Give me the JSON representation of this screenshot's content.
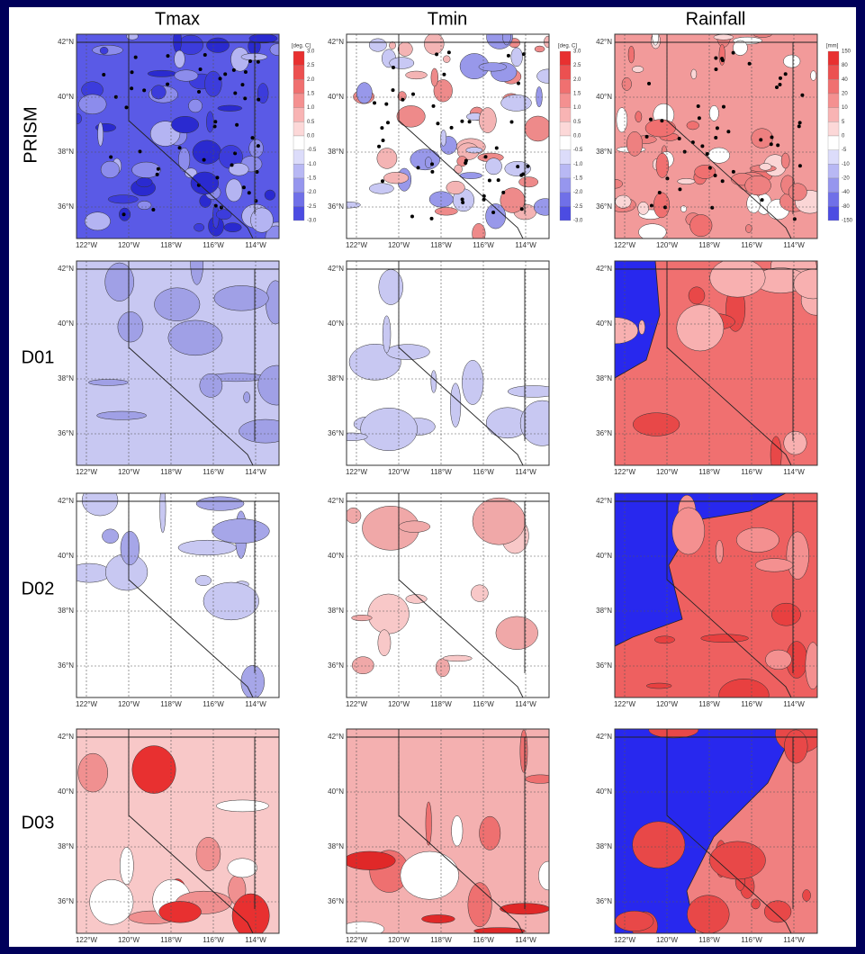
{
  "columns": [
    "Tmax",
    "Tmin",
    "Rainfall"
  ],
  "rows": [
    "PRISM",
    "D01",
    "D02",
    "D03"
  ],
  "lat_labels": [
    "42°N",
    "40°N",
    "38°N",
    "36°N"
  ],
  "lon_labels": [
    "122°W",
    "120°W",
    "118°W",
    "116°W",
    "114°W"
  ],
  "colorbars": [
    {
      "units": "[deg. C]",
      "labels": [
        "3.0",
        "2.5",
        "2.0",
        "1.5",
        "1.0",
        "0.5",
        "0.0",
        "-0.5",
        "-1.0",
        "-1.5",
        "-2.0",
        "-2.5",
        "-3.0"
      ]
    },
    {
      "units": "[deg. C]",
      "labels": [
        "3.0",
        "2.5",
        "2.0",
        "1.5",
        "1.0",
        "0.5",
        "0.0",
        "-0.5",
        "-1.0",
        "-1.5",
        "-2.0",
        "-2.5",
        "-3.0"
      ]
    },
    {
      "units": "[mm]",
      "labels": [
        "150",
        "80",
        "40",
        "20",
        "10",
        "5",
        "0",
        "-5",
        "-10",
        "-20",
        "-40",
        "-80",
        "-150"
      ]
    }
  ]
}
